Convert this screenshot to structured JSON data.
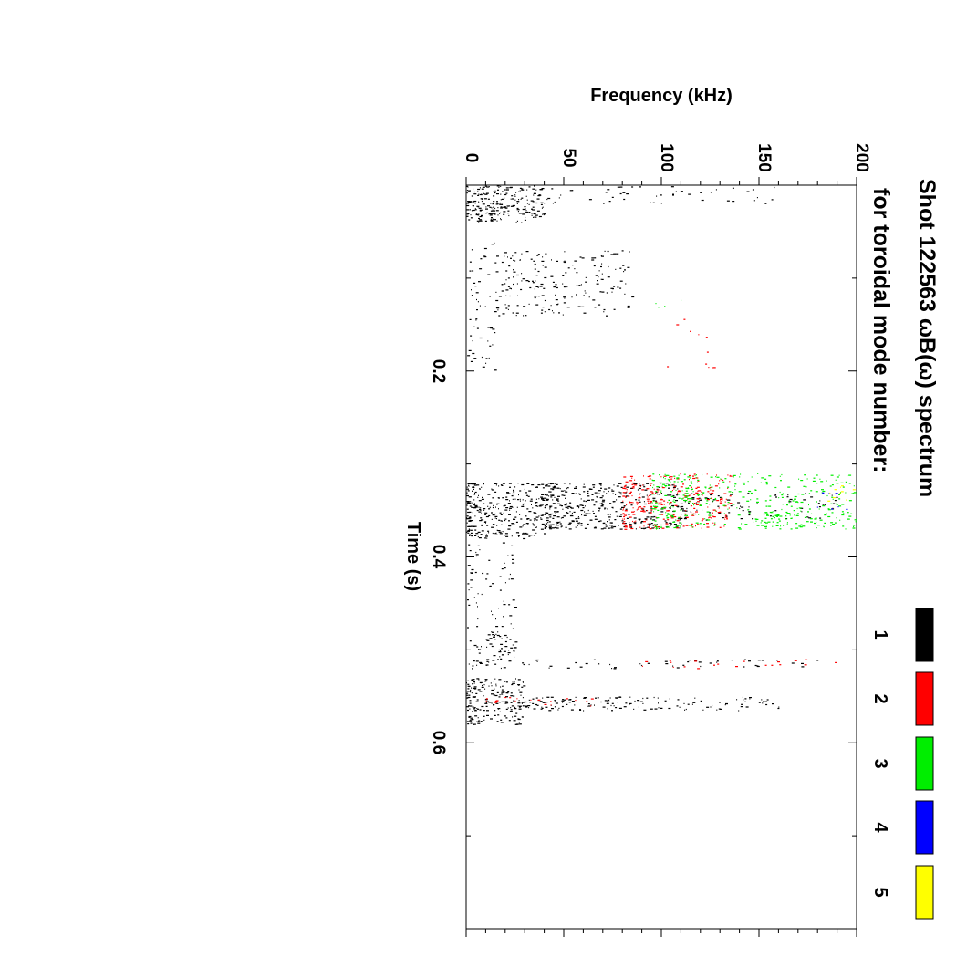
{
  "chart_data": {
    "type": "scatter",
    "title": "Shot 122563 ωB(ω) spectrum",
    "subtitle": "for toroidal mode number:",
    "xlabel": "Time (s)",
    "ylabel": "Frequency (kHz)",
    "xlim": [
      0.0,
      0.8
    ],
    "ylim": [
      0,
      200
    ],
    "xticks": [
      "0.2",
      "0.4",
      "0.6"
    ],
    "yticks": [
      "0",
      "50",
      "100",
      "150",
      "200"
    ],
    "orientation": "rotated-90-clockwise",
    "grid": false,
    "legend_position": "top",
    "legend": [
      {
        "label": "1",
        "color": "#000000"
      },
      {
        "label": "2",
        "color": "#ff0000"
      },
      {
        "label": "3",
        "color": "#00ee00"
      },
      {
        "label": "4",
        "color": "#0000ff"
      },
      {
        "label": "5",
        "color": "#ffff00"
      }
    ],
    "series": [
      {
        "name": "1",
        "color": "#000000",
        "clusters": [
          {
            "t": [
              0.0,
              0.04
            ],
            "f": [
              0,
              40
            ],
            "density": 0.9
          },
          {
            "t": [
              0.0,
              0.02
            ],
            "f": [
              40,
              160
            ],
            "density": 0.12
          },
          {
            "t": [
              0.07,
              0.14
            ],
            "f": [
              15,
              85
            ],
            "density": 0.25
          },
          {
            "t": [
              0.06,
              0.2
            ],
            "f": [
              0,
              15
            ],
            "density": 0.15
          },
          {
            "t": [
              0.32,
              0.38
            ],
            "f": [
              0,
              40
            ],
            "density": 0.8
          },
          {
            "t": [
              0.32,
              0.37
            ],
            "f": [
              40,
              110
            ],
            "density": 0.7
          },
          {
            "t": [
              0.33,
              0.36
            ],
            "f": [
              110,
              190
            ],
            "density": 0.2
          },
          {
            "t": [
              0.38,
              0.52
            ],
            "f": [
              0,
              25
            ],
            "density": 0.15
          },
          {
            "t": [
              0.48,
              0.51
            ],
            "f": [
              10,
              25
            ],
            "density": 0.5
          },
          {
            "t": [
              0.53,
              0.58
            ],
            "f": [
              0,
              30
            ],
            "density": 0.8
          },
          {
            "t": [
              0.55,
              0.565
            ],
            "f": [
              30,
              160
            ],
            "density": 0.45
          },
          {
            "t": [
              0.51,
              0.52
            ],
            "f": [
              0,
              180
            ],
            "density": 0.2
          }
        ]
      },
      {
        "name": "2",
        "color": "#ff0000",
        "clusters": [
          {
            "t": [
              0.31,
              0.37
            ],
            "f": [
              80,
              135
            ],
            "density": 0.55
          },
          {
            "t": [
              0.51,
              0.52
            ],
            "f": [
              90,
              190
            ],
            "density": 0.12
          },
          {
            "t": [
              0.55,
              0.56
            ],
            "f": [
              10,
              70
            ],
            "density": 0.2
          },
          {
            "t": [
              0.13,
              0.2
            ],
            "f": [
              100,
              130
            ],
            "density": 0.03
          }
        ]
      },
      {
        "name": "3",
        "color": "#00ee00",
        "clusters": [
          {
            "t": [
              0.31,
              0.37
            ],
            "f": [
              95,
              200
            ],
            "density": 0.35
          },
          {
            "t": [
              0.35,
              0.37
            ],
            "f": [
              150,
              195
            ],
            "density": 0.3
          },
          {
            "t": [
              0.11,
              0.14
            ],
            "f": [
              95,
              115
            ],
            "density": 0.04
          }
        ]
      },
      {
        "name": "4",
        "color": "#0000ff",
        "clusters": [
          {
            "t": [
              0.33,
              0.35
            ],
            "f": [
              175,
              195
            ],
            "density": 0.12
          },
          {
            "t": [
              0.24,
              0.25
            ],
            "f": [
              60,
              65
            ],
            "density": 0.05
          }
        ]
      },
      {
        "name": "5",
        "color": "#ffff00",
        "clusters": [
          {
            "t": [
              0.32,
              0.34
            ],
            "f": [
              185,
              200
            ],
            "density": 0.2
          }
        ]
      }
    ]
  }
}
